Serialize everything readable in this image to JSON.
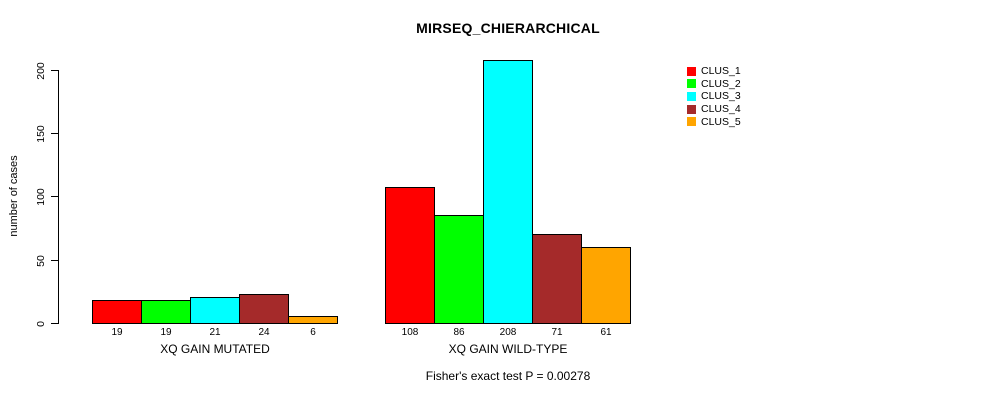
{
  "chart_data": {
    "type": "bar",
    "title": "MIRSEQ_CHIERARCHICAL",
    "ylabel": "number of cases",
    "xlabel": "",
    "caption": "Fisher's exact test P = 0.00278",
    "categories": [
      "XQ GAIN MUTATED",
      "XQ GAIN WILD-TYPE"
    ],
    "series": [
      {
        "name": "CLUS_1",
        "color": "#FF0000",
        "values": [
          19,
          108
        ]
      },
      {
        "name": "CLUS_2",
        "color": "#00FF00",
        "values": [
          19,
          86
        ]
      },
      {
        "name": "CLUS_3",
        "color": "#00FFFF",
        "values": [
          21,
          208
        ]
      },
      {
        "name": "CLUS_4",
        "color": "#A52A2A",
        "values": [
          24,
          71
        ]
      },
      {
        "name": "CLUS_5",
        "color": "#FFA500",
        "values": [
          6,
          61
        ]
      }
    ],
    "bar_value_labels": true,
    "yticks": [
      0,
      50,
      100,
      150,
      200
    ],
    "ylim": [
      0,
      200
    ],
    "grid": false,
    "legend_position": "right",
    "background": "#FFFFFF",
    "bar_border_color": "#000000",
    "text_color": "#000000"
  }
}
